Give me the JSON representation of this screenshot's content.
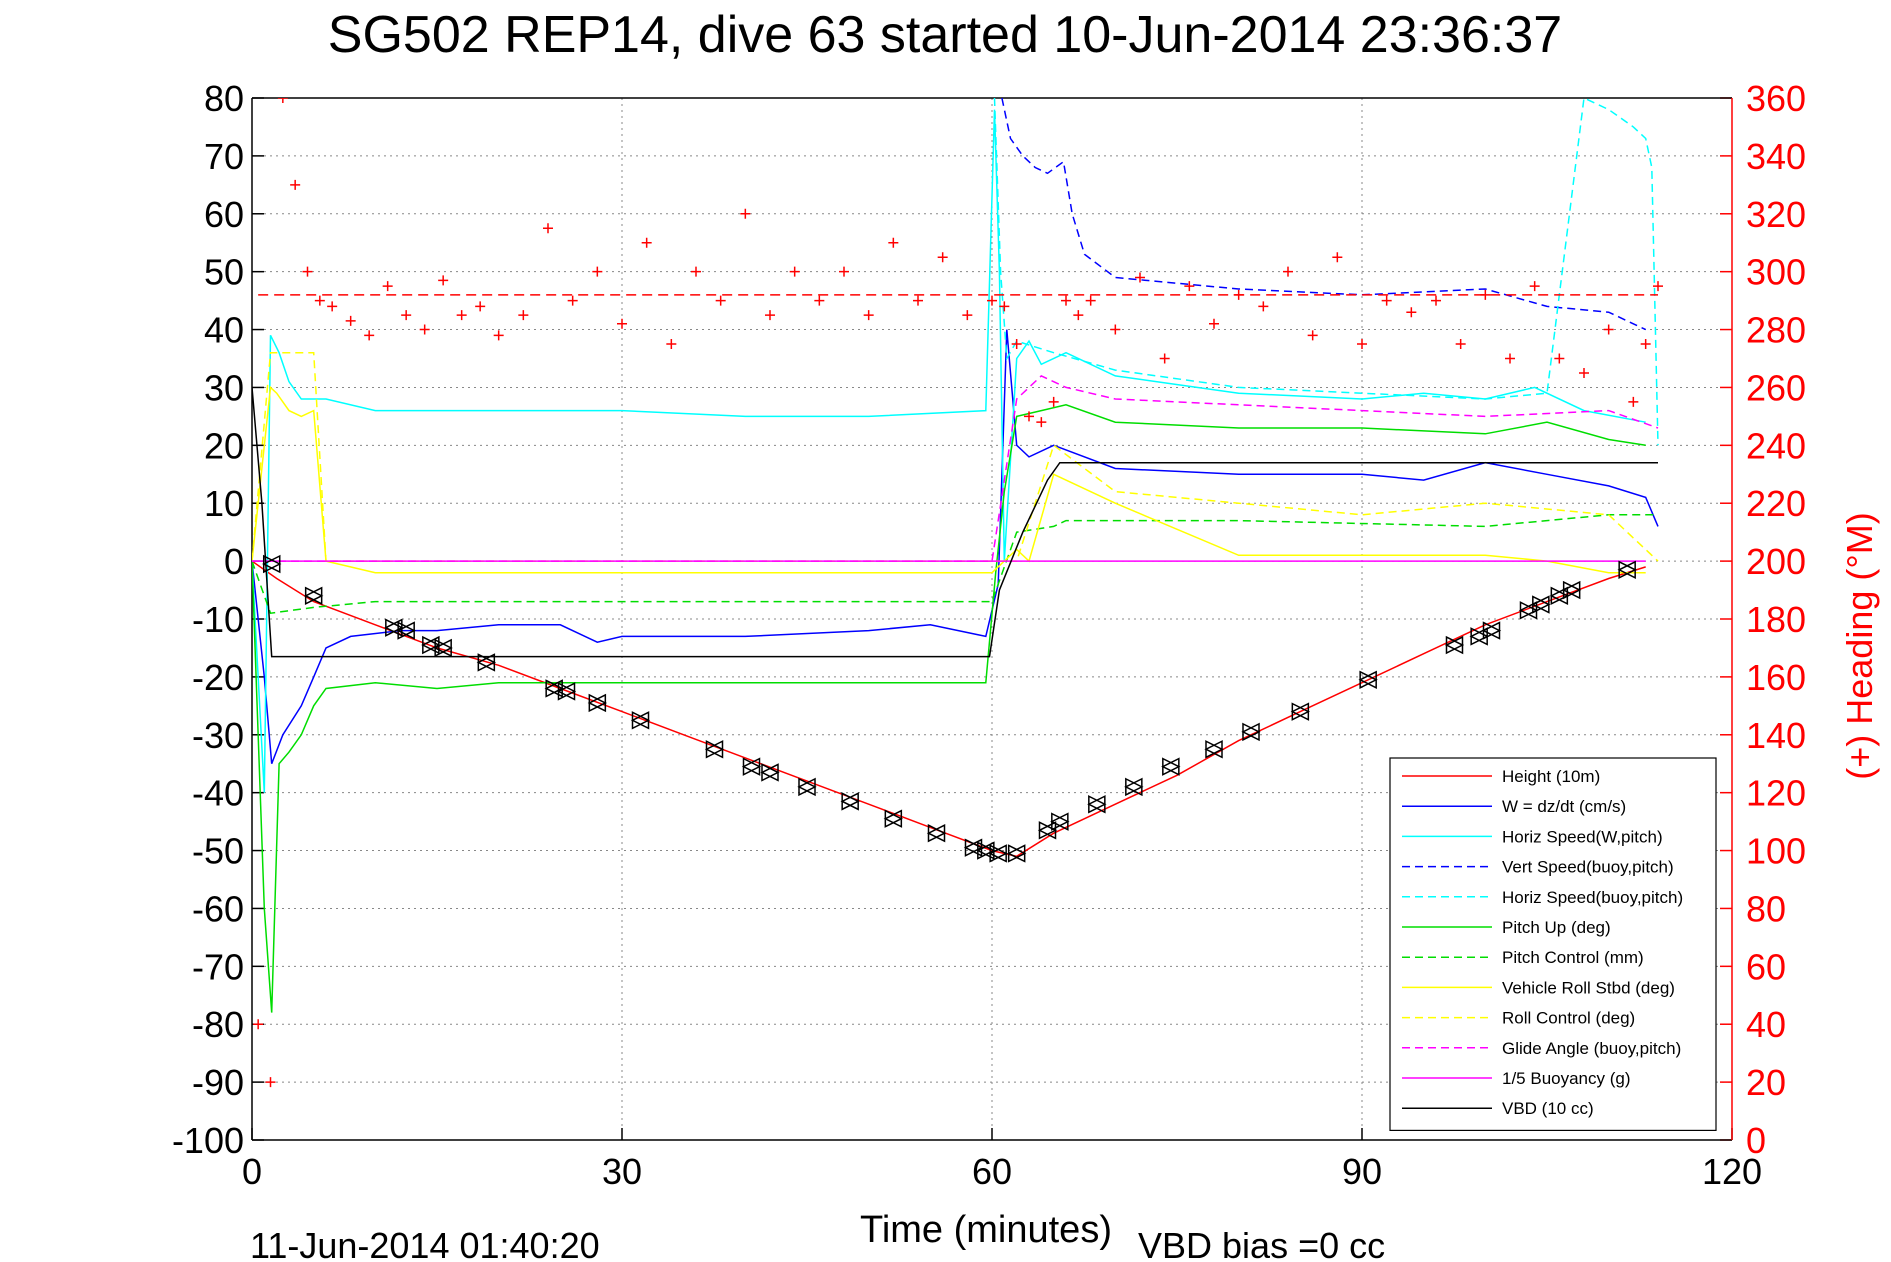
{
  "chart_data": {
    "type": "line",
    "title": "SG502 REP14, dive 63 started 10-Jun-2014 23:36:37",
    "xlabel": "Time (minutes)",
    "ylabel": "",
    "y2label": "(+) Heading (°M)",
    "xlim": [
      0,
      120
    ],
    "ylim": [
      -100,
      80
    ],
    "y2lim": [
      0,
      360
    ],
    "xticks": [
      "0",
      "30",
      "60",
      "90",
      "120"
    ],
    "yticks": [
      "80",
      "70",
      "60",
      "50",
      "40",
      "30",
      "20",
      "10",
      "0",
      "-10",
      "-20",
      "-30",
      "-40",
      "-50",
      "-60",
      "-70",
      "-80",
      "-90",
      "-100"
    ],
    "y2ticks": [
      "360",
      "340",
      "320",
      "300",
      "280",
      "260",
      "240",
      "220",
      "200",
      "180",
      "160",
      "140",
      "120",
      "100",
      "80",
      "60",
      "40",
      "20",
      "0"
    ],
    "grid": true,
    "legend_position": "bottom-right",
    "footer_left": "11-Jun-2014 01:40:20",
    "footer_right": "VBD bias =0 cc",
    "colors": {
      "height": "#ff0000",
      "w": "#0000ff",
      "horiz_speed": "#00ffff",
      "pitch": "#00dd00",
      "roll": "#ffff00",
      "glide": "#ff00ff",
      "vbd": "#000000",
      "heading": "#ff0000"
    },
    "series": [
      {
        "name": "Height (10m)",
        "color": "#ff0000",
        "dash": "",
        "x": [
          0,
          2,
          5,
          10,
          15,
          20,
          25,
          30,
          35,
          40,
          45,
          50,
          55,
          60,
          62,
          65,
          70,
          75,
          80,
          85,
          90,
          95,
          100,
          105,
          110,
          113
        ],
        "y": [
          0,
          -3,
          -7,
          -11,
          -15,
          -18,
          -22,
          -26,
          -30,
          -34,
          -38,
          -42,
          -46,
          -50,
          -51,
          -47,
          -42,
          -37,
          -31,
          -26,
          -21,
          -16,
          -11,
          -7,
          -3,
          -1
        ]
      },
      {
        "name": "W = dz/dt (cm/s)",
        "color": "#0000ff",
        "dash": "",
        "x": [
          0,
          1,
          1.6,
          2.5,
          4,
          5,
          6,
          8,
          12,
          15,
          20,
          25,
          28,
          30,
          40,
          50,
          55,
          59.5,
          60.5,
          61.2,
          62,
          63,
          65,
          70,
          80,
          90,
          95,
          100,
          105,
          110,
          113,
          114
        ],
        "y": [
          0,
          -20,
          -35,
          -30,
          -25,
          -20,
          -15,
          -13,
          -12,
          -12,
          -11,
          -11,
          -14,
          -13,
          -13,
          -12,
          -11,
          -13,
          -4,
          40,
          20,
          18,
          20,
          16,
          15,
          15,
          14,
          17,
          15,
          13,
          11,
          6
        ]
      },
      {
        "name": "Horiz Speed(W,pitch)",
        "color": "#00ffff",
        "dash": "",
        "x": [
          0,
          1,
          1.5,
          2.2,
          3,
          4,
          6,
          10,
          20,
          30,
          40,
          50,
          59.5,
          60.2,
          60.6,
          61,
          62,
          63,
          64,
          66,
          70,
          80,
          90,
          95,
          100,
          104,
          108,
          113
        ],
        "y": [
          0,
          -40,
          39,
          36,
          31,
          28,
          28,
          26,
          26,
          26,
          25,
          25,
          26,
          78,
          50,
          0,
          35,
          38,
          34,
          36,
          32,
          29,
          28,
          29,
          28,
          30,
          26,
          24
        ]
      },
      {
        "name": "Vert Speed(buoy,pitch)",
        "color": "#0000ff",
        "dash": "8 5",
        "x": [
          60.8,
          61.5,
          62.5,
          63.5,
          64.5,
          65.8,
          66.5,
          67.5,
          70,
          80,
          90,
          100,
          105,
          110,
          113
        ],
        "y": [
          80,
          73,
          70,
          68,
          67,
          69,
          60,
          53,
          49,
          47,
          46,
          47,
          44,
          43,
          40
        ]
      },
      {
        "name": "Horiz Speed(buoy,pitch)",
        "color": "#00ffff",
        "dash": "8 5",
        "x": [
          60.2,
          60.7,
          61.2,
          62,
          65,
          70,
          80,
          100,
          105,
          108,
          110,
          112,
          113,
          113.5,
          114
        ],
        "y": [
          80,
          50,
          35,
          38,
          36,
          33,
          30,
          28,
          29,
          80,
          78,
          75,
          73,
          68,
          20
        ]
      },
      {
        "name": "Pitch Up (deg)",
        "color": "#00dd00",
        "dash": "",
        "x": [
          0,
          1,
          1.6,
          2.2,
          3,
          4,
          5,
          6,
          10,
          15,
          20,
          30,
          40,
          50,
          59.5,
          60.3,
          61,
          62,
          64,
          66,
          70,
          80,
          90,
          100,
          105,
          110,
          113
        ],
        "y": [
          0,
          -60,
          -78,
          -35,
          -33,
          -30,
          -25,
          -22,
          -21,
          -22,
          -21,
          -21,
          -21,
          -21,
          -21,
          -2,
          12,
          25,
          26,
          27,
          24,
          23,
          23,
          22,
          24,
          21,
          20
        ]
      },
      {
        "name": "Pitch Control (mm)",
        "color": "#00dd00",
        "dash": "8 5",
        "x": [
          0,
          1.5,
          5,
          10,
          30,
          40,
          60,
          62,
          65,
          66,
          80,
          100,
          110,
          114
        ],
        "y": [
          0,
          -9,
          -8,
          -7,
          -7,
          -7,
          -7,
          5,
          6,
          7,
          7,
          6,
          8,
          8
        ]
      },
      {
        "name": "Vehicle Roll Stbd (deg)",
        "color": "#ffff00",
        "dash": "",
        "x": [
          0,
          1.5,
          2,
          3,
          4,
          5,
          6,
          10,
          15,
          20,
          25,
          28,
          30,
          35,
          40,
          45,
          50,
          55,
          60,
          61,
          62,
          63,
          65,
          70,
          80,
          90,
          100,
          105,
          110,
          113
        ],
        "y": [
          0,
          30,
          29,
          26,
          25,
          26,
          0,
          -2,
          -2,
          -2,
          -2,
          -2,
          -2,
          -2,
          -2,
          -2,
          -2,
          -2,
          -2,
          0,
          2,
          0,
          15,
          10,
          1,
          1,
          1,
          0,
          -2,
          -2
        ]
      },
      {
        "name": "Roll Control (deg)",
        "color": "#ffff00",
        "dash": "8 5",
        "x": [
          0,
          1.5,
          2,
          5,
          6,
          30,
          60,
          62,
          65,
          70,
          80,
          90,
          100,
          110,
          114
        ],
        "y": [
          0,
          36,
          36,
          36,
          0,
          0,
          0,
          0,
          20,
          12,
          10,
          8,
          10,
          8,
          0
        ]
      },
      {
        "name": "Glide Angle (buoy,pitch)",
        "color": "#ff00ff",
        "dash": "8 5",
        "x": [
          0,
          30,
          60,
          62,
          64,
          66,
          70,
          80,
          90,
          100,
          110,
          114
        ],
        "y": [
          0,
          0,
          0,
          28,
          32,
          30,
          28,
          27,
          26,
          25,
          26,
          23
        ]
      },
      {
        "name": "1/5 Buoyancy (g)",
        "color": "#ff00ff",
        "dash": "",
        "x": [
          0,
          30,
          60,
          90,
          113
        ],
        "y": [
          0,
          0,
          0,
          0,
          0
        ]
      },
      {
        "name": "VBD (10 cc)",
        "color": "#000000",
        "dash": "",
        "x": [
          0,
          0.8,
          1.6,
          5,
          30,
          59.8,
          60.6,
          62.5,
          64.5,
          65.5,
          70,
          80,
          90,
          100,
          110,
          114
        ],
        "y": [
          30,
          10,
          -16.5,
          -16.5,
          -16.5,
          -16.5,
          -5,
          5,
          14,
          17,
          17,
          17,
          17,
          17,
          17,
          17
        ]
      }
    ],
    "heading_series": {
      "name": "(+) Heading",
      "color": "#ff0000",
      "x": [
        0.5,
        1.5,
        2.5,
        3.5,
        4.5,
        5.5,
        6.5,
        8,
        9.5,
        11,
        12.5,
        14,
        15.5,
        17,
        18.5,
        20,
        22,
        24,
        26,
        28,
        30,
        32,
        34,
        36,
        38,
        40,
        42,
        44,
        46,
        48,
        50,
        52,
        54,
        56,
        58,
        60,
        61,
        62,
        63,
        64,
        65,
        66,
        67,
        68,
        70,
        72,
        74,
        76,
        78,
        80,
        82,
        84,
        86,
        88,
        90,
        92,
        94,
        96,
        98,
        100,
        102,
        104,
        106,
        108,
        110,
        112,
        113,
        114
      ],
      "y": [
        40,
        20,
        360,
        330,
        300,
        290,
        288,
        283,
        278,
        295,
        285,
        280,
        297,
        285,
        288,
        278,
        285,
        315,
        290,
        300,
        282,
        310,
        275,
        300,
        290,
        320,
        285,
        300,
        290,
        300,
        285,
        310,
        290,
        305,
        285,
        290,
        288,
        275,
        250,
        248,
        255,
        290,
        285,
        290,
        280,
        298,
        270,
        295,
        282,
        292,
        288,
        300,
        278,
        305,
        275,
        290,
        286,
        290,
        275,
        292,
        270,
        295,
        270,
        265,
        280,
        255,
        275,
        295
      ]
    },
    "heading_ref": 292,
    "markers": {
      "x": [
        1.6,
        5,
        11.5,
        12.5,
        14.5,
        15.5,
        19,
        24.5,
        25.5,
        28,
        31.5,
        37.5,
        40.5,
        42,
        45,
        48.5,
        52,
        55.5,
        58.5,
        59.5,
        60.5,
        62,
        64.5,
        65.5,
        68.5,
        71.5,
        74.5,
        78,
        81,
        85,
        90.5,
        97.5,
        99.5,
        100.5,
        103.5,
        104.5,
        106,
        107,
        111.5
      ],
      "y": [
        -0.5,
        -6,
        -11.5,
        -12,
        -14.5,
        -15,
        -17.5,
        -22,
        -22.5,
        -24.5,
        -27.5,
        -32.5,
        -35.5,
        -36.5,
        -39,
        -41.5,
        -44.5,
        -47,
        -49.5,
        -50,
        -50.5,
        -50.5,
        -46.5,
        -45,
        -42,
        -39,
        -35.5,
        -32.5,
        -29.5,
        -26,
        -20.5,
        -14.5,
        -13,
        -12,
        -8.5,
        -7.5,
        -6,
        -5,
        -1.5
      ]
    }
  }
}
